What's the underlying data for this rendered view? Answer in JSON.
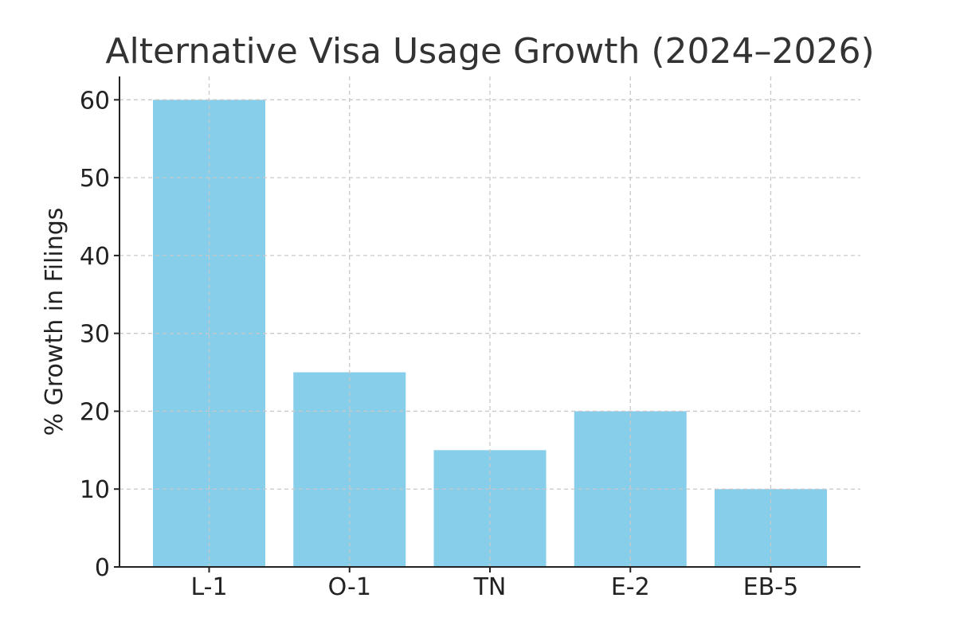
{
  "chart_data": {
    "type": "bar",
    "title": "Alternative Visa Usage Growth (2024–2026)",
    "xlabel": "",
    "ylabel": "% Growth in Filings",
    "categories": [
      "L-1",
      "O-1",
      "TN",
      "E-2",
      "EB-5"
    ],
    "values": [
      60,
      25,
      15,
      20,
      10
    ],
    "ylim": [
      0,
      63
    ],
    "yticks": [
      0,
      10,
      20,
      30,
      40,
      50,
      60
    ],
    "grid": true,
    "bar_color": "#87ceeb"
  }
}
